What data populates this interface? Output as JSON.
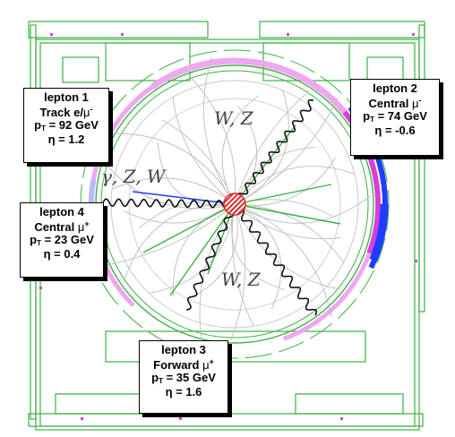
{
  "boson_labels": {
    "top": "W, Z",
    "bottom": "W, Z",
    "left": "γ, Z, W"
  },
  "leptons": [
    {
      "title": "lepton 1",
      "type_prefix": "Track e/",
      "type_symbol": "μ",
      "type_sup": "-",
      "pt_value": " = 92 GeV",
      "eta": "η = 1.2"
    },
    {
      "title": "lepton 2",
      "type_prefix": "Central ",
      "type_symbol": "μ",
      "type_sup": "-",
      "pt_value": " = 74 GeV",
      "eta": "η = -0.6"
    },
    {
      "title": "lepton 3",
      "type_prefix": "Forward ",
      "type_symbol": "μ",
      "type_sup": "+",
      "pt_value": " = 35 GeV",
      "eta": "η = 1.6"
    },
    {
      "title": "lepton 4",
      "type_prefix": "Central ",
      "type_symbol": "μ",
      "type_sup": "+",
      "pt_value": " = 23 GeV",
      "eta": "η = 0.4"
    }
  ],
  "pt_symbol": "p",
  "pt_sub": "T",
  "colors": {
    "green": "#3cb043",
    "magenta": "#d83fd8",
    "pink": "#f0a6f0",
    "blue": "#1f3cff",
    "track_gray": "#bdbdbd",
    "vertex_red": "#e0282a"
  }
}
